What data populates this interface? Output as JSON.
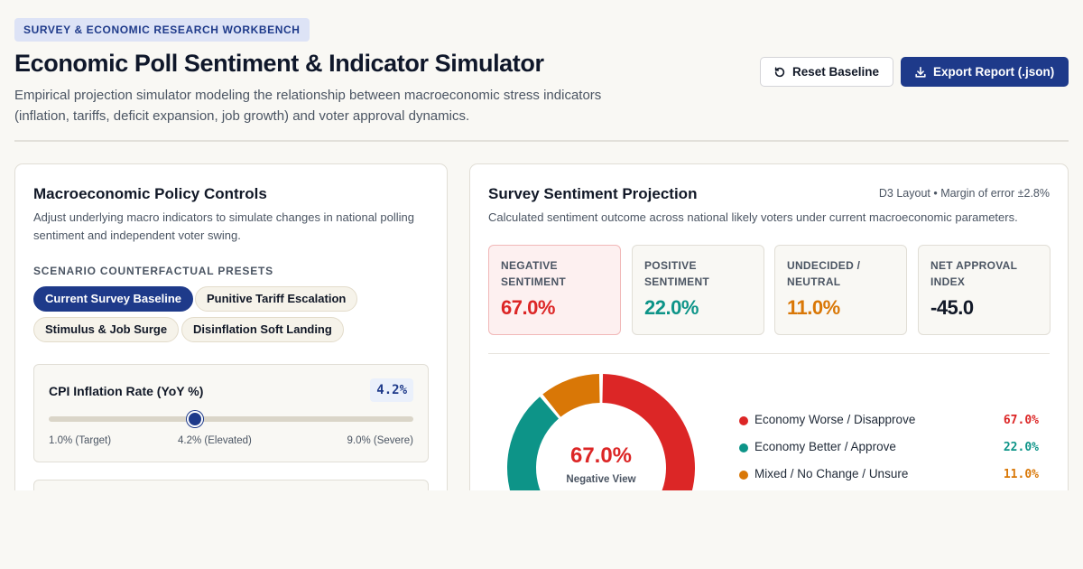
{
  "header": {
    "badge": "SURVEY & ECONOMIC RESEARCH WORKBENCH",
    "title": "Economic Poll Sentiment & Indicator Simulator",
    "subtitle": "Empirical projection simulator modeling the relationship between macroeconomic stress indicators (inflation, tariffs, deficit expansion, job growth) and voter approval dynamics.",
    "reset_label": "Reset Baseline",
    "export_label": "Export Report (.json)"
  },
  "controls": {
    "title": "Macroeconomic Policy Controls",
    "description": "Adjust underlying macro indicators to simulate changes in national polling sentiment and independent voter swing.",
    "presets_label": "SCENARIO COUNTERFACTUAL PRESETS",
    "presets": [
      {
        "label": "Current Survey Baseline",
        "active": true
      },
      {
        "label": "Punitive Tariff Escalation",
        "active": false
      },
      {
        "label": "Stimulus & Job Surge",
        "active": false
      },
      {
        "label": "Disinflation Soft Landing",
        "active": false
      }
    ],
    "sliders": [
      {
        "label": "CPI Inflation Rate (YoY %)",
        "value_text": "4.2%",
        "value": 4.2,
        "min": 1.0,
        "max": 9.0,
        "tick_min": "1.0% (Target)",
        "tick_mid": "4.2% (Elevated)",
        "tick_max": "9.0% (Severe)"
      }
    ]
  },
  "projection": {
    "title": "Survey Sentiment Projection",
    "meta": "D3 Layout • Margin of error ±2.8%",
    "description": "Calculated sentiment outcome across national likely voters under current macroeconomic parameters.",
    "stats": [
      {
        "label": "NEGATIVE SENTIMENT",
        "value": "67.0%",
        "color": "#dc2626"
      },
      {
        "label": "POSITIVE SENTIMENT",
        "value": "22.0%",
        "color": "#0d9488"
      },
      {
        "label": "UNDECIDED / NEUTRAL",
        "value": "11.0%",
        "color": "#d97706"
      },
      {
        "label": "NET APPROVAL INDEX",
        "value": "-45.0",
        "color": "#111827"
      }
    ],
    "donut_center_value": "67.0%",
    "donut_center_label": "Negative View",
    "legend": [
      {
        "label": "Economy Worse / Disapprove",
        "value_text": "67.0%",
        "value": 67.0,
        "color": "#dc2626"
      },
      {
        "label": "Economy Better / Approve",
        "value_text": "22.0%",
        "value": 22.0,
        "color": "#0d9488"
      },
      {
        "label": "Mixed / No Change / Unsure",
        "value_text": "11.0%",
        "value": 11.0,
        "color": "#d97706"
      }
    ]
  },
  "chart_data": {
    "type": "pie",
    "categories": [
      "Economy Worse / Disapprove",
      "Economy Better / Approve",
      "Mixed / No Change / Unsure"
    ],
    "values": [
      67.0,
      22.0,
      11.0
    ],
    "colors": [
      "#dc2626",
      "#0d9488",
      "#d97706"
    ]
  }
}
